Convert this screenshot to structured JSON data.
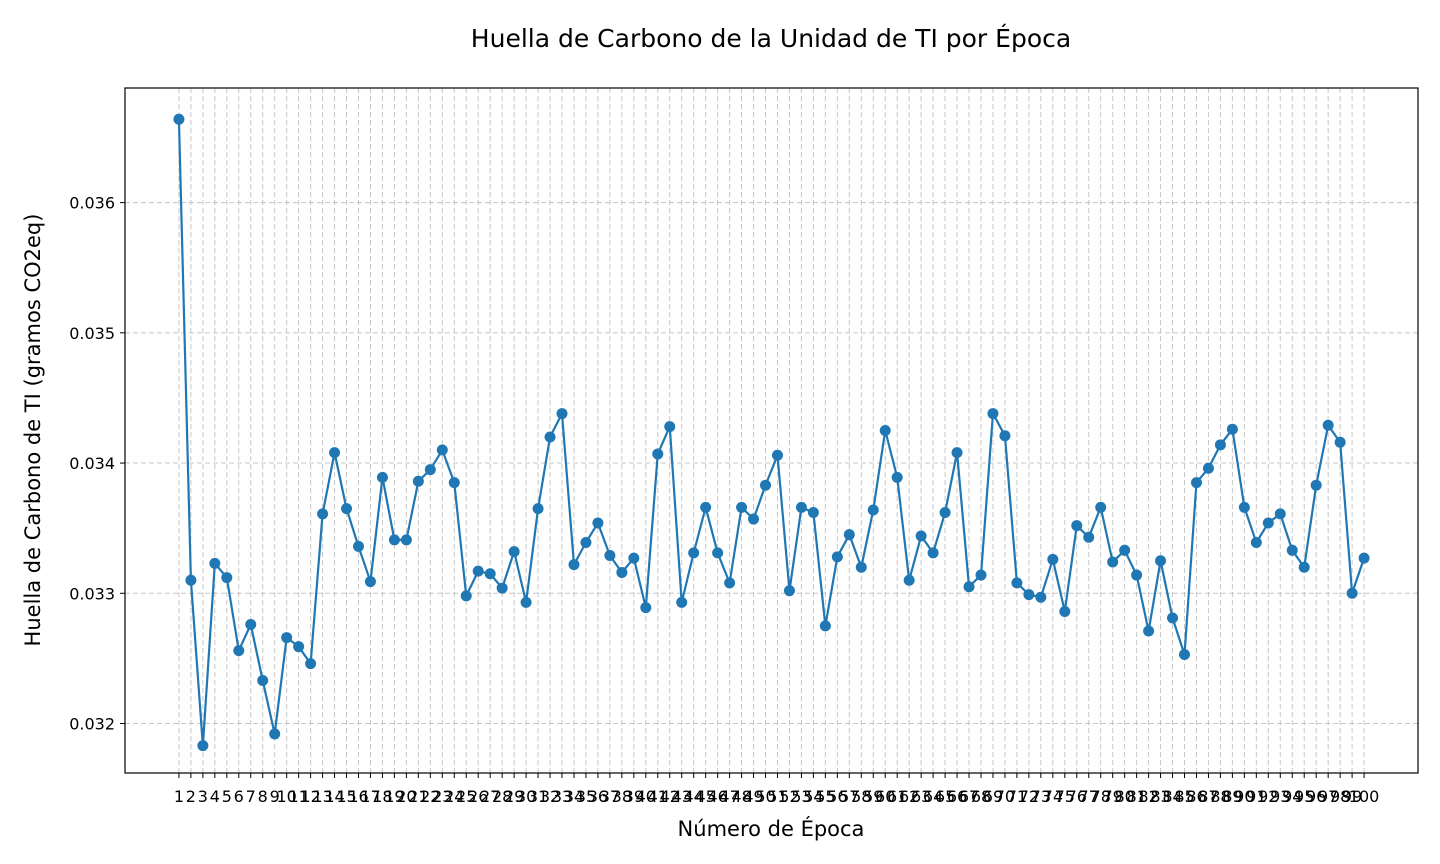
{
  "chart_data": {
    "type": "line",
    "title": "Huella de Carbono de la Unidad de TI por Época",
    "xlabel": "Número de Época",
    "ylabel": "Huella de Carbono de TI (gramos CO2eq)",
    "grid": true,
    "ylim": [
      0.03162,
      0.03688
    ],
    "yticks": [
      0.032,
      0.033,
      0.034,
      0.035,
      0.036
    ],
    "ytick_labels": [
      "0.032",
      "0.033",
      "0.034",
      "0.035",
      "0.036"
    ],
    "x": [
      1,
      2,
      3,
      4,
      5,
      6,
      7,
      8,
      9,
      10,
      11,
      12,
      13,
      14,
      15,
      16,
      17,
      18,
      19,
      20,
      21,
      22,
      23,
      24,
      25,
      26,
      27,
      28,
      29,
      30,
      31,
      32,
      33,
      34,
      35,
      36,
      37,
      38,
      39,
      40,
      41,
      42,
      43,
      44,
      45,
      46,
      47,
      48,
      49,
      50,
      51,
      52,
      53,
      54,
      55,
      56,
      57,
      58,
      59,
      60,
      61,
      62,
      63,
      64,
      65,
      66,
      67,
      68,
      69,
      70,
      71,
      72,
      73,
      74,
      75,
      76,
      77,
      78,
      79,
      80,
      81,
      82,
      83,
      84,
      85,
      86,
      87,
      88,
      89,
      90,
      91,
      92,
      93,
      94,
      95,
      96,
      97,
      98,
      99,
      100
    ],
    "series": [
      {
        "color": "#1f77b4",
        "values": [
          0.03664,
          0.0331,
          0.03183,
          0.03323,
          0.03312,
          0.03256,
          0.03276,
          0.03233,
          0.03192,
          0.03266,
          0.03259,
          0.03246,
          0.03361,
          0.03408,
          0.03365,
          0.03336,
          0.03309,
          0.03389,
          0.03341,
          0.03341,
          0.03386,
          0.03395,
          0.0341,
          0.03385,
          0.03298,
          0.03317,
          0.03315,
          0.03304,
          0.03332,
          0.03293,
          0.03365,
          0.0342,
          0.03438,
          0.03322,
          0.03339,
          0.03354,
          0.03329,
          0.03316,
          0.03327,
          0.03289,
          0.03407,
          0.03428,
          0.03293,
          0.03331,
          0.03366,
          0.03331,
          0.03308,
          0.03366,
          0.03357,
          0.03383,
          0.03406,
          0.03302,
          0.03366,
          0.03362,
          0.03275,
          0.03328,
          0.03345,
          0.0332,
          0.03364,
          0.03425,
          0.03389,
          0.0331,
          0.03344,
          0.03331,
          0.03362,
          0.03408,
          0.03305,
          0.03314,
          0.03438,
          0.03421,
          0.03308,
          0.03299,
          0.03297,
          0.03326,
          0.03286,
          0.03352,
          0.03343,
          0.03366,
          0.03324,
          0.03333,
          0.03314,
          0.03271,
          0.03325,
          0.03281,
          0.03253,
          0.03385,
          0.03396,
          0.03414,
          0.03426,
          0.03366,
          0.03339,
          0.03354,
          0.03361,
          0.03333,
          0.0332,
          0.03383,
          0.03429,
          0.03416,
          0.033,
          0.03327
        ]
      }
    ]
  }
}
